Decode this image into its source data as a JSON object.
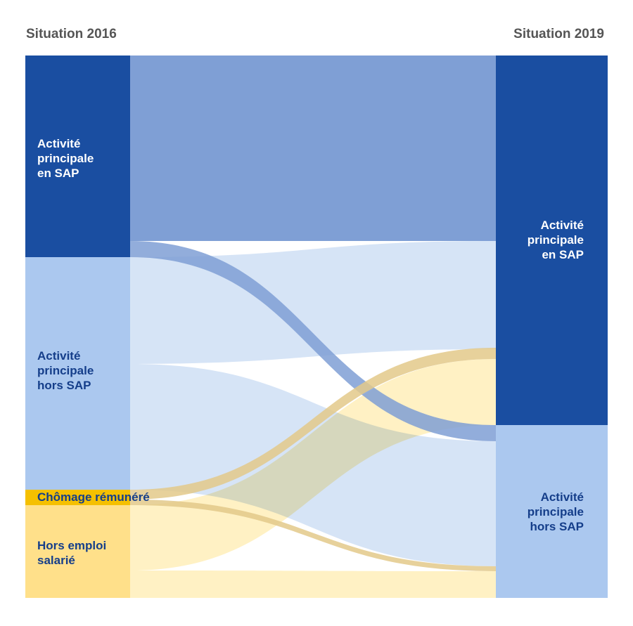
{
  "titles": {
    "left": "Situation 2016",
    "right": "Situation 2019"
  },
  "left_nodes": [
    {
      "id": "L1",
      "label_lines": [
        "Activité",
        "principale",
        "en SAP"
      ],
      "color": "#1a4ea1",
      "text_color": "#ffffff"
    },
    {
      "id": "L2",
      "label_lines": [
        "Activité",
        "principale",
        "hors SAP"
      ],
      "color": "#abc8ef",
      "text_color": "#153e8a"
    },
    {
      "id": "L3",
      "label_lines": [
        "Chômage rémunéré"
      ],
      "color": "#f5c000",
      "text_color": "#153e8a"
    },
    {
      "id": "L4",
      "label_lines": [
        "Hors emploi",
        "salarié"
      ],
      "color": "#ffe08a",
      "text_color": "#153e8a"
    }
  ],
  "right_nodes": [
    {
      "id": "R1",
      "label_lines": [
        "Activité",
        "principale",
        "en SAP"
      ],
      "color": "#1a4ea1",
      "text_color": "#ffffff"
    },
    {
      "id": "R2",
      "label_lines": [
        "Activité",
        "principale",
        "hors SAP"
      ],
      "color": "#abc8ef",
      "text_color": "#153e8a"
    }
  ],
  "flows": [
    {
      "from": "L1",
      "to": "R1",
      "color": "#7f9fd5"
    },
    {
      "from": "L1",
      "to": "R2",
      "color": "#7f9fd5"
    },
    {
      "from": "L2",
      "to": "R1",
      "color": "#d6e4f6"
    },
    {
      "from": "L2",
      "to": "R2",
      "color": "#d6e4f6"
    },
    {
      "from": "L3",
      "to": "R1",
      "color": "#e3c98a"
    },
    {
      "from": "L3",
      "to": "R2",
      "color": "#e3c98a"
    },
    {
      "from": "L4",
      "to": "R1",
      "color": "#fff1c4"
    },
    {
      "from": "L4",
      "to": "R2",
      "color": "#fff1c4"
    }
  ]
}
